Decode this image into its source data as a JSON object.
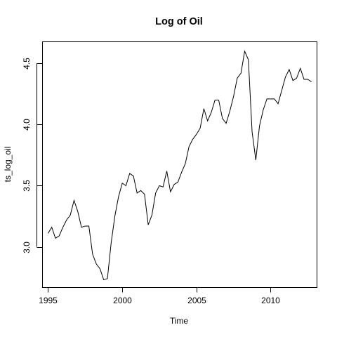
{
  "chart_data": {
    "type": "line",
    "title": "Log of Oil",
    "xlabel": "Time",
    "ylabel": "ts_log_oil",
    "xlim": [
      1994.6,
      2013.1
    ],
    "ylim": [
      2.67,
      4.68
    ],
    "xticks": [
      1995,
      2000,
      2005,
      2010
    ],
    "yticks": [
      3.0,
      3.5,
      4.0,
      4.5
    ],
    "ytick_labels": [
      "3.0",
      "3.5",
      "4.0",
      "4.5"
    ],
    "grid": false,
    "legend": "none",
    "series": [
      {
        "color": "#000000",
        "x": [
          1995.0,
          1995.25,
          1995.5,
          1995.75,
          1996.0,
          1996.25,
          1996.5,
          1996.75,
          1997.0,
          1997.25,
          1997.5,
          1997.75,
          1998.0,
          1998.25,
          1998.5,
          1998.75,
          1999.0,
          1999.25,
          1999.5,
          1999.75,
          2000.0,
          2000.25,
          2000.5,
          2000.75,
          2001.0,
          2001.25,
          2001.5,
          2001.75,
          2002.0,
          2002.25,
          2002.5,
          2002.75,
          2003.0,
          2003.25,
          2003.5,
          2003.75,
          2004.0,
          2004.25,
          2004.5,
          2004.75,
          2005.0,
          2005.25,
          2005.5,
          2005.75,
          2006.0,
          2006.25,
          2006.5,
          2006.75,
          2007.0,
          2007.25,
          2007.5,
          2007.75,
          2008.0,
          2008.25,
          2008.5,
          2008.75,
          2009.0,
          2009.25,
          2009.5,
          2009.75,
          2010.0,
          2010.25,
          2010.5,
          2010.75,
          2011.0,
          2011.25,
          2011.5,
          2011.75,
          2012.0,
          2012.25,
          2012.5,
          2012.75
        ],
        "values": [
          3.11,
          3.16,
          3.07,
          3.09,
          3.16,
          3.22,
          3.26,
          3.38,
          3.29,
          3.16,
          3.17,
          3.17,
          2.94,
          2.86,
          2.82,
          2.73,
          2.74,
          3.03,
          3.25,
          3.41,
          3.52,
          3.5,
          3.6,
          3.58,
          3.44,
          3.46,
          3.43,
          3.18,
          3.26,
          3.44,
          3.5,
          3.49,
          3.62,
          3.45,
          3.51,
          3.53,
          3.61,
          3.68,
          3.82,
          3.88,
          3.92,
          3.97,
          4.13,
          4.03,
          4.1,
          4.2,
          4.2,
          4.05,
          4.01,
          4.11,
          4.23,
          4.38,
          4.42,
          4.6,
          4.53,
          3.94,
          3.71,
          3.99,
          4.12,
          4.21,
          4.21,
          4.21,
          4.17,
          4.28,
          4.39,
          4.45,
          4.36,
          4.38,
          4.46,
          4.37,
          4.37,
          4.35
        ]
      }
    ]
  }
}
